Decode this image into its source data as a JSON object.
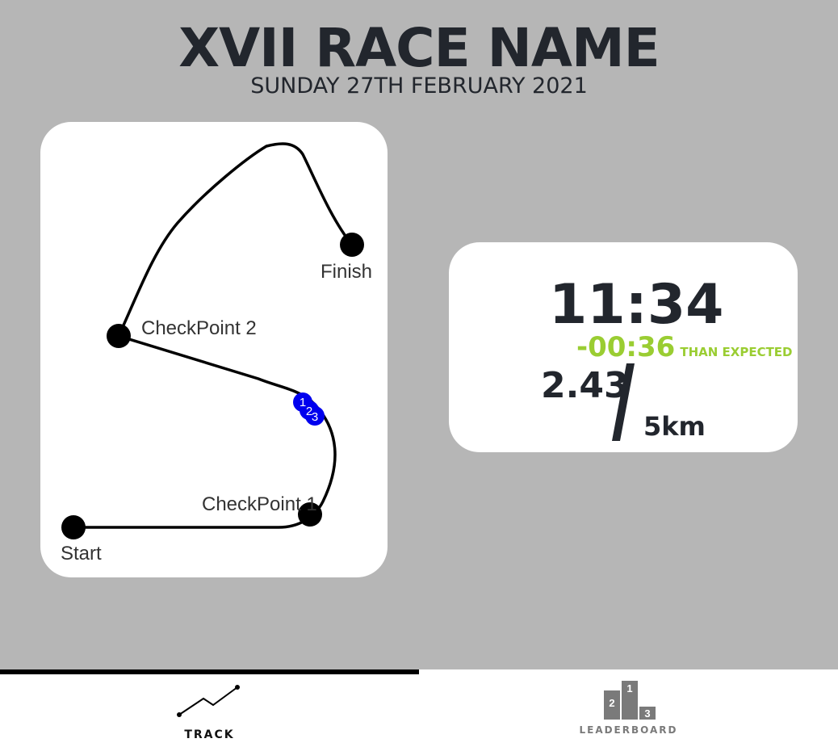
{
  "header": {
    "title": "XVII RACE NAME",
    "date": "SUNDAY 27TH FEBRUARY 2021"
  },
  "map": {
    "points": {
      "start": "Start",
      "checkpoint_1": "CheckPoint 1",
      "checkpoint_2": "CheckPoint 2",
      "finish": "Finish"
    },
    "runner_markers": [
      "1",
      "2",
      "3"
    ],
    "colors": {
      "route": "#000000",
      "runner": "#0000ee"
    }
  },
  "stats": {
    "elapsed_time": "11:34",
    "delta": "-00:36",
    "delta_label": "THAN EXPECTED",
    "distance_current": "2.43",
    "distance_total": "5km",
    "colors": {
      "delta": "#9acd32",
      "text": "#22262d"
    }
  },
  "nav": {
    "tabs": [
      {
        "label": "TRACK",
        "icon": "track-line-icon",
        "active": true
      },
      {
        "label": "LEADERBOARD",
        "icon": "podium-icon",
        "active": false
      }
    ],
    "podium_numbers": [
      "2",
      "1",
      "3"
    ]
  }
}
